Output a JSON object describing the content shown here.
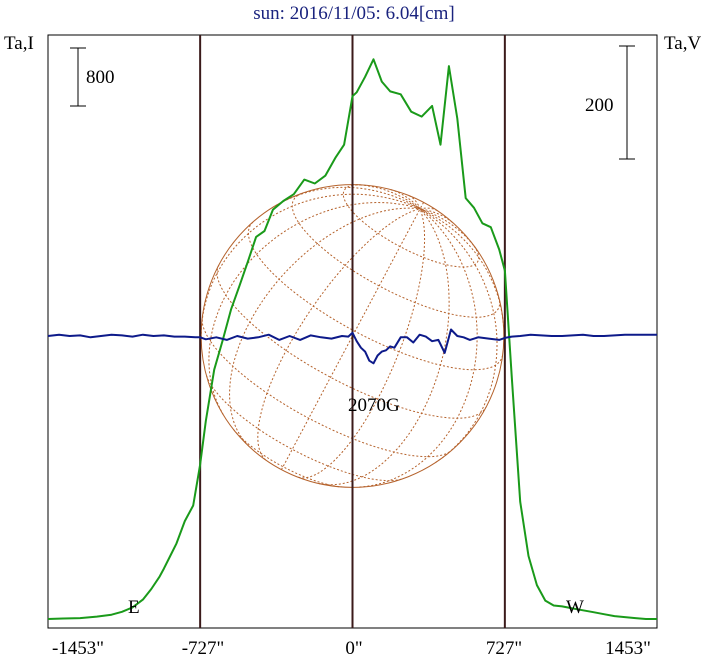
{
  "chart_data": {
    "type": "line",
    "title": "sun: 2016/11/05: 6.04[cm]",
    "left_axis_label": "Ta,I",
    "right_axis_label": "Ta,V",
    "left_scale_bar": "800",
    "right_scale_bar": "200",
    "x_unit": "arcsec",
    "xlim": [
      -1453,
      1453
    ],
    "x_ticks": [
      "-1453\"",
      "-727\"",
      "0\"",
      "727\"",
      "1453\""
    ],
    "x_tick_values": [
      -1453,
      -727,
      0,
      727,
      1453
    ],
    "limb_markers": [
      {
        "label": "E",
        "x": -727
      },
      {
        "label": "W",
        "x": 727
      }
    ],
    "center_marker_x": 0,
    "annotation": "2070G",
    "annotation_x": 70,
    "disk_radius": 727,
    "grid": false,
    "series": [
      {
        "name": "",
        "color": "#1a9a1a",
        "x": [
          -1453,
          -1380,
          -1300,
          -1220,
          -1150,
          -1100,
          -1050,
          -1000,
          -960,
          -920,
          -900,
          -870,
          -840,
          -800,
          -760,
          -727,
          -700,
          -660,
          -620,
          -580,
          -540,
          -500,
          -460,
          -420,
          -380,
          -330,
          -280,
          -230,
          -180,
          -130,
          -80,
          -40,
          0,
          20,
          60,
          100,
          140,
          180,
          230,
          280,
          330,
          380,
          420,
          460,
          500,
          540,
          580,
          620,
          660,
          700,
          727,
          760,
          800,
          840,
          880,
          920,
          960,
          1000,
          1050,
          1100,
          1150,
          1200,
          1250,
          1300,
          1350,
          1400,
          1453
        ],
        "y": [
          1,
          1.5,
          2,
          3.5,
          5.5,
          8.5,
          13,
          21,
          32,
          45,
          53,
          66,
          79,
          102,
          118,
          160,
          205,
          258,
          288,
          320,
          344,
          369,
          395,
          401,
          423,
          432,
          439,
          454,
          450,
          458,
          477,
          490,
          540,
          544,
          560,
          578,
          555,
          545,
          542,
          524,
          519,
          530,
          490,
          571,
          517,
          435,
          425,
          409,
          405,
          382,
          360,
          250,
          122,
          66,
          36,
          20,
          15,
          14,
          12,
          10,
          8,
          6,
          4,
          3,
          2,
          1,
          1
        ]
      },
      {
        "name": "",
        "color": "#0d1a8a",
        "x": [
          -1453,
          -1400,
          -1350,
          -1300,
          -1250,
          -1200,
          -1150,
          -1100,
          -1050,
          -1000,
          -950,
          -900,
          -850,
          -800,
          -750,
          -727,
          -700,
          -650,
          -600,
          -550,
          -500,
          -450,
          -400,
          -350,
          -300,
          -250,
          -200,
          -150,
          -100,
          -50,
          -20,
          0,
          20,
          40,
          60,
          80,
          100,
          120,
          140,
          160,
          180,
          200,
          230,
          260,
          290,
          320,
          350,
          380,
          410,
          440,
          470,
          500,
          530,
          560,
          600,
          650,
          700,
          727,
          760,
          800,
          850,
          900,
          950,
          1000,
          1050,
          1100,
          1150,
          1200,
          1250,
          1300,
          1350,
          1400,
          1453
        ],
        "y": [
          0,
          1,
          0,
          0.5,
          -1,
          0,
          1,
          0.5,
          -0.5,
          1,
          0,
          0.5,
          -0.5,
          -0.5,
          -1,
          -1,
          -2.5,
          -1,
          -3,
          0,
          -2,
          -1,
          1,
          -3,
          0,
          -3,
          0.5,
          -1,
          -2,
          0,
          -0.5,
          2.5,
          -4,
          -9,
          -12,
          -19,
          -21,
          -15,
          -12,
          -11,
          -8,
          -9,
          -1,
          -1,
          -5,
          1,
          -0.5,
          -4,
          -3,
          -13,
          5,
          0,
          -1,
          -3,
          -1,
          -2,
          -3,
          -1.5,
          -0.5,
          0,
          1,
          0.5,
          0,
          0,
          0.5,
          1,
          0,
          0,
          0.5,
          1,
          1,
          1,
          1
        ]
      }
    ]
  }
}
